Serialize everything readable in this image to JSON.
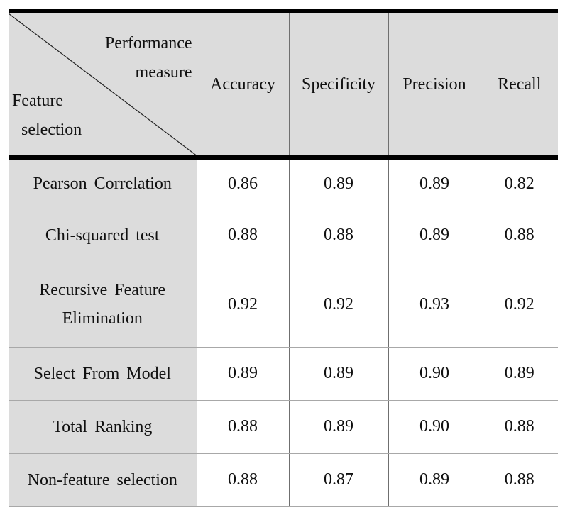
{
  "chart_data": {
    "type": "table",
    "corner_header": {
      "top_right": [
        "Performance",
        "measure"
      ],
      "bottom_left": [
        "Feature",
        "selection"
      ]
    },
    "columns": [
      "Accuracy",
      "Specificity",
      "Precision",
      "Recall"
    ],
    "rows": [
      {
        "label": [
          "Pearson Correlation"
        ],
        "values": [
          "0.86",
          "0.89",
          "0.89",
          "0.82"
        ]
      },
      {
        "label": [
          "Chi-squared test"
        ],
        "values": [
          "0.88",
          "0.88",
          "0.89",
          "0.88"
        ]
      },
      {
        "label": [
          "Recursive Feature",
          "Elimination"
        ],
        "values": [
          "0.92",
          "0.92",
          "0.93",
          "0.92"
        ]
      },
      {
        "label": [
          "Select From Model"
        ],
        "values": [
          "0.89",
          "0.89",
          "0.90",
          "0.89"
        ]
      },
      {
        "label": [
          "Total Ranking"
        ],
        "values": [
          "0.88",
          "0.89",
          "0.90",
          "0.88"
        ]
      },
      {
        "label": [
          "Non-feature selection"
        ],
        "values": [
          "0.88",
          "0.87",
          "0.89",
          "0.88"
        ]
      }
    ],
    "colors": {
      "header_bg": "#dcdcdc",
      "label_bg": "#dcdcdc",
      "rule": "#000000"
    }
  }
}
